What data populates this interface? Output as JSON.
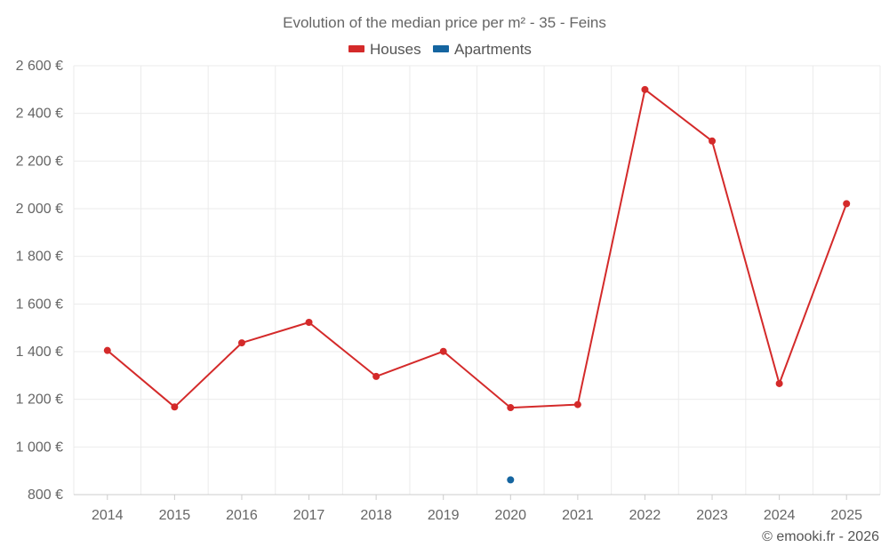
{
  "chart_data": {
    "type": "line",
    "title": "Evolution of the median price per m² - 35 - Feins",
    "categories": [
      "2014",
      "2015",
      "2016",
      "2017",
      "2018",
      "2019",
      "2020",
      "2021",
      "2022",
      "2023",
      "2024",
      "2025"
    ],
    "series": [
      {
        "name": "Houses",
        "color": "#d42a2a",
        "values": [
          1405,
          1168,
          1437,
          1523,
          1296,
          1401,
          1165,
          1178,
          2500,
          2284,
          1266,
          2021
        ]
      },
      {
        "name": "Apartments",
        "color": "#1565a0",
        "values": [
          null,
          null,
          null,
          null,
          null,
          null,
          862,
          null,
          null,
          null,
          null,
          null
        ]
      }
    ],
    "ylim": [
      800,
      2600
    ],
    "yticks": [
      800,
      1000,
      1200,
      1400,
      1600,
      1800,
      2000,
      2200,
      2400,
      2600
    ],
    "ytick_labels": [
      "800 €",
      "1 000 €",
      "1 200 €",
      "1 400 €",
      "1 600 €",
      "1 800 €",
      "2 000 €",
      "2 200 €",
      "2 400 €",
      "2 600 €"
    ],
    "xlabel": "",
    "ylabel": "",
    "grid": true,
    "legend": "top-center"
  },
  "credit": "© emooki.fr - 2026"
}
